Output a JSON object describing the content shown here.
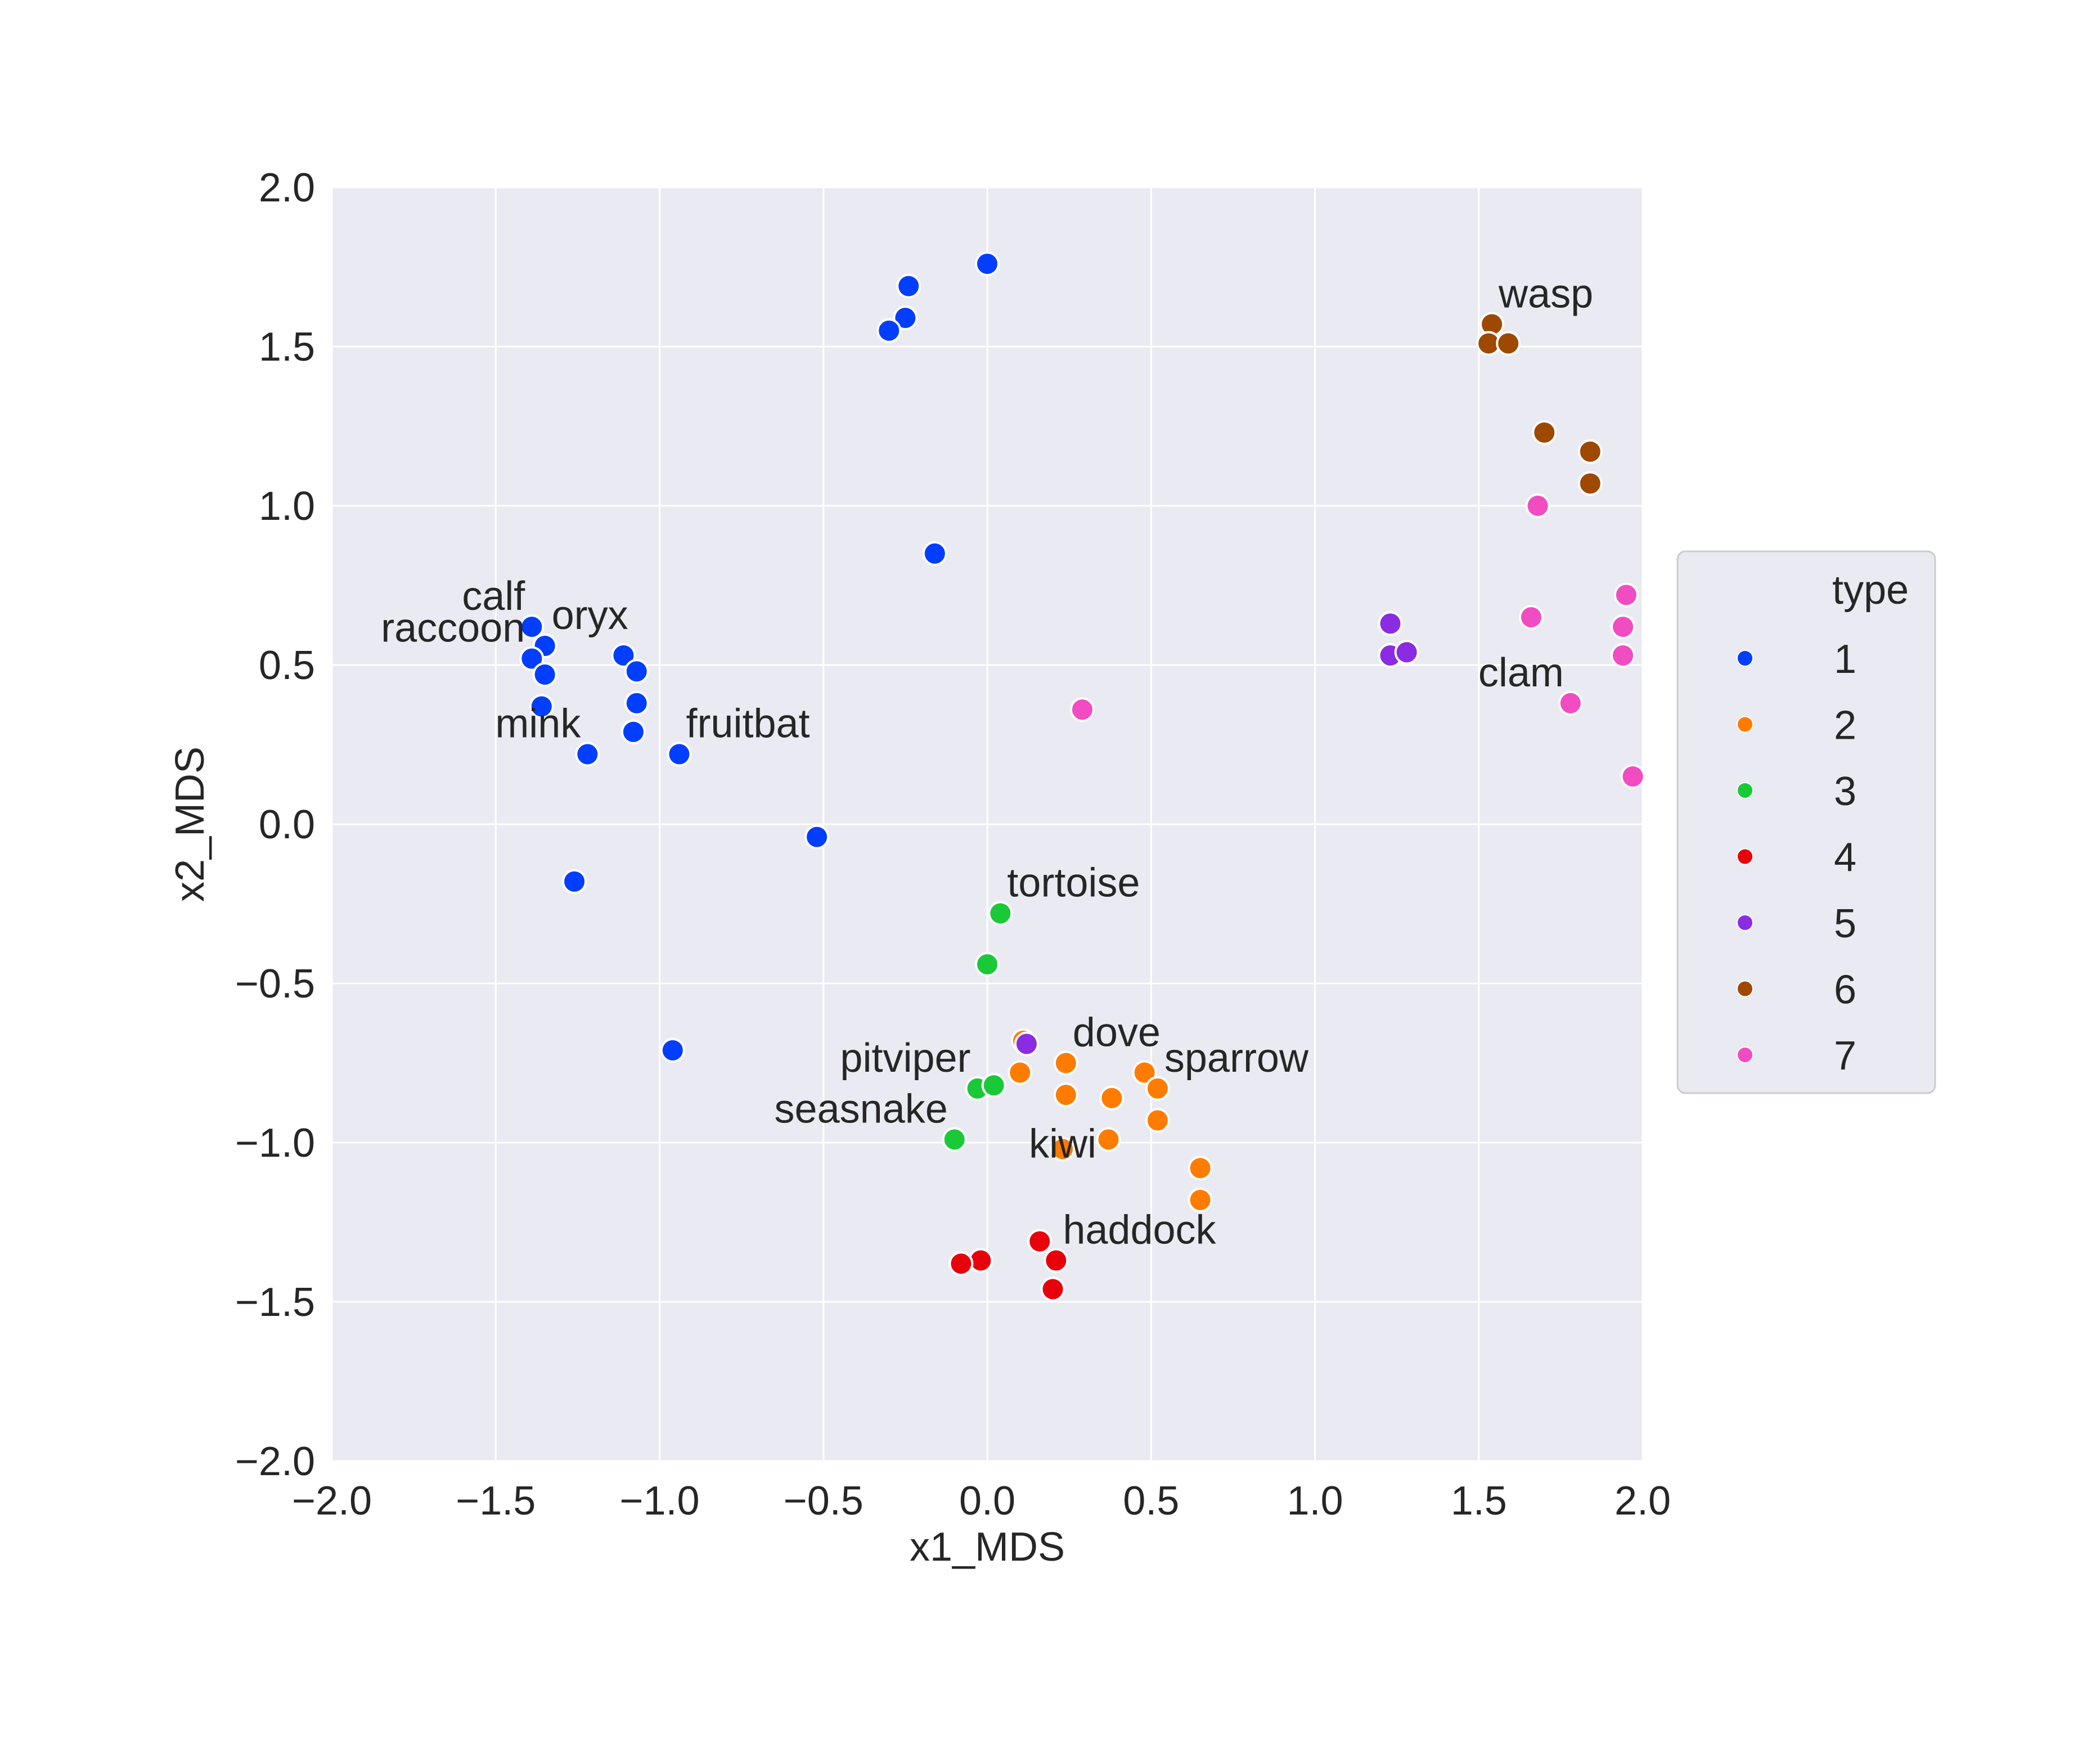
{
  "chart_data": {
    "type": "scatter",
    "xlabel": "x1_MDS",
    "ylabel": "x2_MDS",
    "xlim": [
      -2.0,
      2.0
    ],
    "ylim": [
      -2.0,
      2.0
    ],
    "xticks": [
      "−2.0",
      "−1.5",
      "−1.0",
      "−0.5",
      "0.0",
      "0.5",
      "1.0",
      "1.5",
      "2.0"
    ],
    "yticks": [
      "−2.0",
      "−1.5",
      "−1.0",
      "−0.5",
      "0.0",
      "0.5",
      "1.0",
      "1.5",
      "2.0"
    ],
    "grid": true,
    "legend": {
      "title": "type",
      "placement": "right"
    },
    "series": [
      {
        "name": "1",
        "color": "#023eff",
        "points": [
          [
            0.0,
            1.76
          ],
          [
            -0.24,
            1.69
          ],
          [
            -0.25,
            1.59
          ],
          [
            -0.3,
            1.55
          ],
          [
            -0.16,
            0.85
          ],
          [
            -1.39,
            0.62
          ],
          [
            -1.35,
            0.56
          ],
          [
            -1.39,
            0.52
          ],
          [
            -1.35,
            0.47
          ],
          [
            -1.36,
            0.37
          ],
          [
            -1.11,
            0.53
          ],
          [
            -1.07,
            0.48
          ],
          [
            -1.07,
            0.38
          ],
          [
            -1.08,
            0.29
          ],
          [
            -0.94,
            0.22
          ],
          [
            -1.22,
            0.22
          ],
          [
            -0.52,
            -0.04
          ],
          [
            -1.26,
            -0.18
          ],
          [
            -0.96,
            -0.71
          ]
        ]
      },
      {
        "name": "2",
        "color": "#ff7c00",
        "points": [
          [
            0.11,
            -0.68
          ],
          [
            0.24,
            -0.75
          ],
          [
            0.1,
            -0.78
          ],
          [
            0.24,
            -0.85
          ],
          [
            0.48,
            -0.78
          ],
          [
            0.52,
            -0.83
          ],
          [
            0.38,
            -0.86
          ],
          [
            0.52,
            -0.93
          ],
          [
            0.37,
            -0.99
          ],
          [
            0.23,
            -1.02
          ],
          [
            0.65,
            -1.08
          ],
          [
            0.65,
            -1.18
          ]
        ]
      },
      {
        "name": "3",
        "color": "#1ac938",
        "points": [
          [
            0.04,
            -0.28
          ],
          [
            0.0,
            -0.44
          ],
          [
            -0.03,
            -0.83
          ],
          [
            0.02,
            -0.82
          ],
          [
            -0.1,
            -0.99
          ]
        ]
      },
      {
        "name": "4",
        "color": "#e8000b",
        "points": [
          [
            0.16,
            -1.31
          ],
          [
            0.21,
            -1.37
          ],
          [
            -0.02,
            -1.37
          ],
          [
            -0.08,
            -1.38
          ],
          [
            0.2,
            -1.46
          ]
        ]
      },
      {
        "name": "5",
        "color": "#8b2be2",
        "points": [
          [
            1.23,
            0.63
          ],
          [
            1.23,
            0.53
          ],
          [
            1.28,
            0.54
          ],
          [
            0.12,
            -0.69
          ]
        ]
      },
      {
        "name": "6",
        "color": "#9f4800",
        "points": [
          [
            1.54,
            1.57
          ],
          [
            1.53,
            1.51
          ],
          [
            1.59,
            1.51
          ],
          [
            1.7,
            1.23
          ],
          [
            1.84,
            1.17
          ],
          [
            1.84,
            1.07
          ]
        ]
      },
      {
        "name": "7",
        "color": "#f14cc1",
        "points": [
          [
            1.68,
            1.0
          ],
          [
            1.95,
            0.72
          ],
          [
            1.66,
            0.65
          ],
          [
            1.94,
            0.62
          ],
          [
            1.94,
            0.53
          ],
          [
            1.78,
            0.38
          ],
          [
            0.29,
            0.36
          ],
          [
            1.97,
            0.15
          ]
        ]
      }
    ],
    "annotations": [
      {
        "text": "calf",
        "x": -1.39,
        "y": 0.62,
        "anchor": "end"
      },
      {
        "text": "oryx",
        "x": -1.35,
        "y": 0.56,
        "anchor": "start"
      },
      {
        "text": "raccoon",
        "x": -1.39,
        "y": 0.52,
        "anchor": "end"
      },
      {
        "text": "mink",
        "x": -1.22,
        "y": 0.22,
        "anchor": "end"
      },
      {
        "text": "fruitbat",
        "x": -0.94,
        "y": 0.22,
        "anchor": "start"
      },
      {
        "text": "tortoise",
        "x": 0.04,
        "y": -0.28,
        "anchor": "start"
      },
      {
        "text": "dove",
        "x": 0.24,
        "y": -0.75,
        "anchor": "start"
      },
      {
        "text": "pitviper",
        "x": -0.03,
        "y": -0.83,
        "anchor": "end"
      },
      {
        "text": "sparrow",
        "x": 0.52,
        "y": -0.83,
        "anchor": "start"
      },
      {
        "text": "seasnake",
        "x": -0.1,
        "y": -0.99,
        "anchor": "end"
      },
      {
        "text": "kiwi",
        "x": 0.23,
        "y": -1.02,
        "anchor": "mid"
      },
      {
        "text": "haddock",
        "x": 0.21,
        "y": -1.37,
        "anchor": "start"
      },
      {
        "text": "wasp",
        "x": 1.54,
        "y": 1.57,
        "anchor": "start"
      },
      {
        "text": "clam",
        "x": 1.78,
        "y": 0.38,
        "anchor": "end"
      }
    ]
  }
}
